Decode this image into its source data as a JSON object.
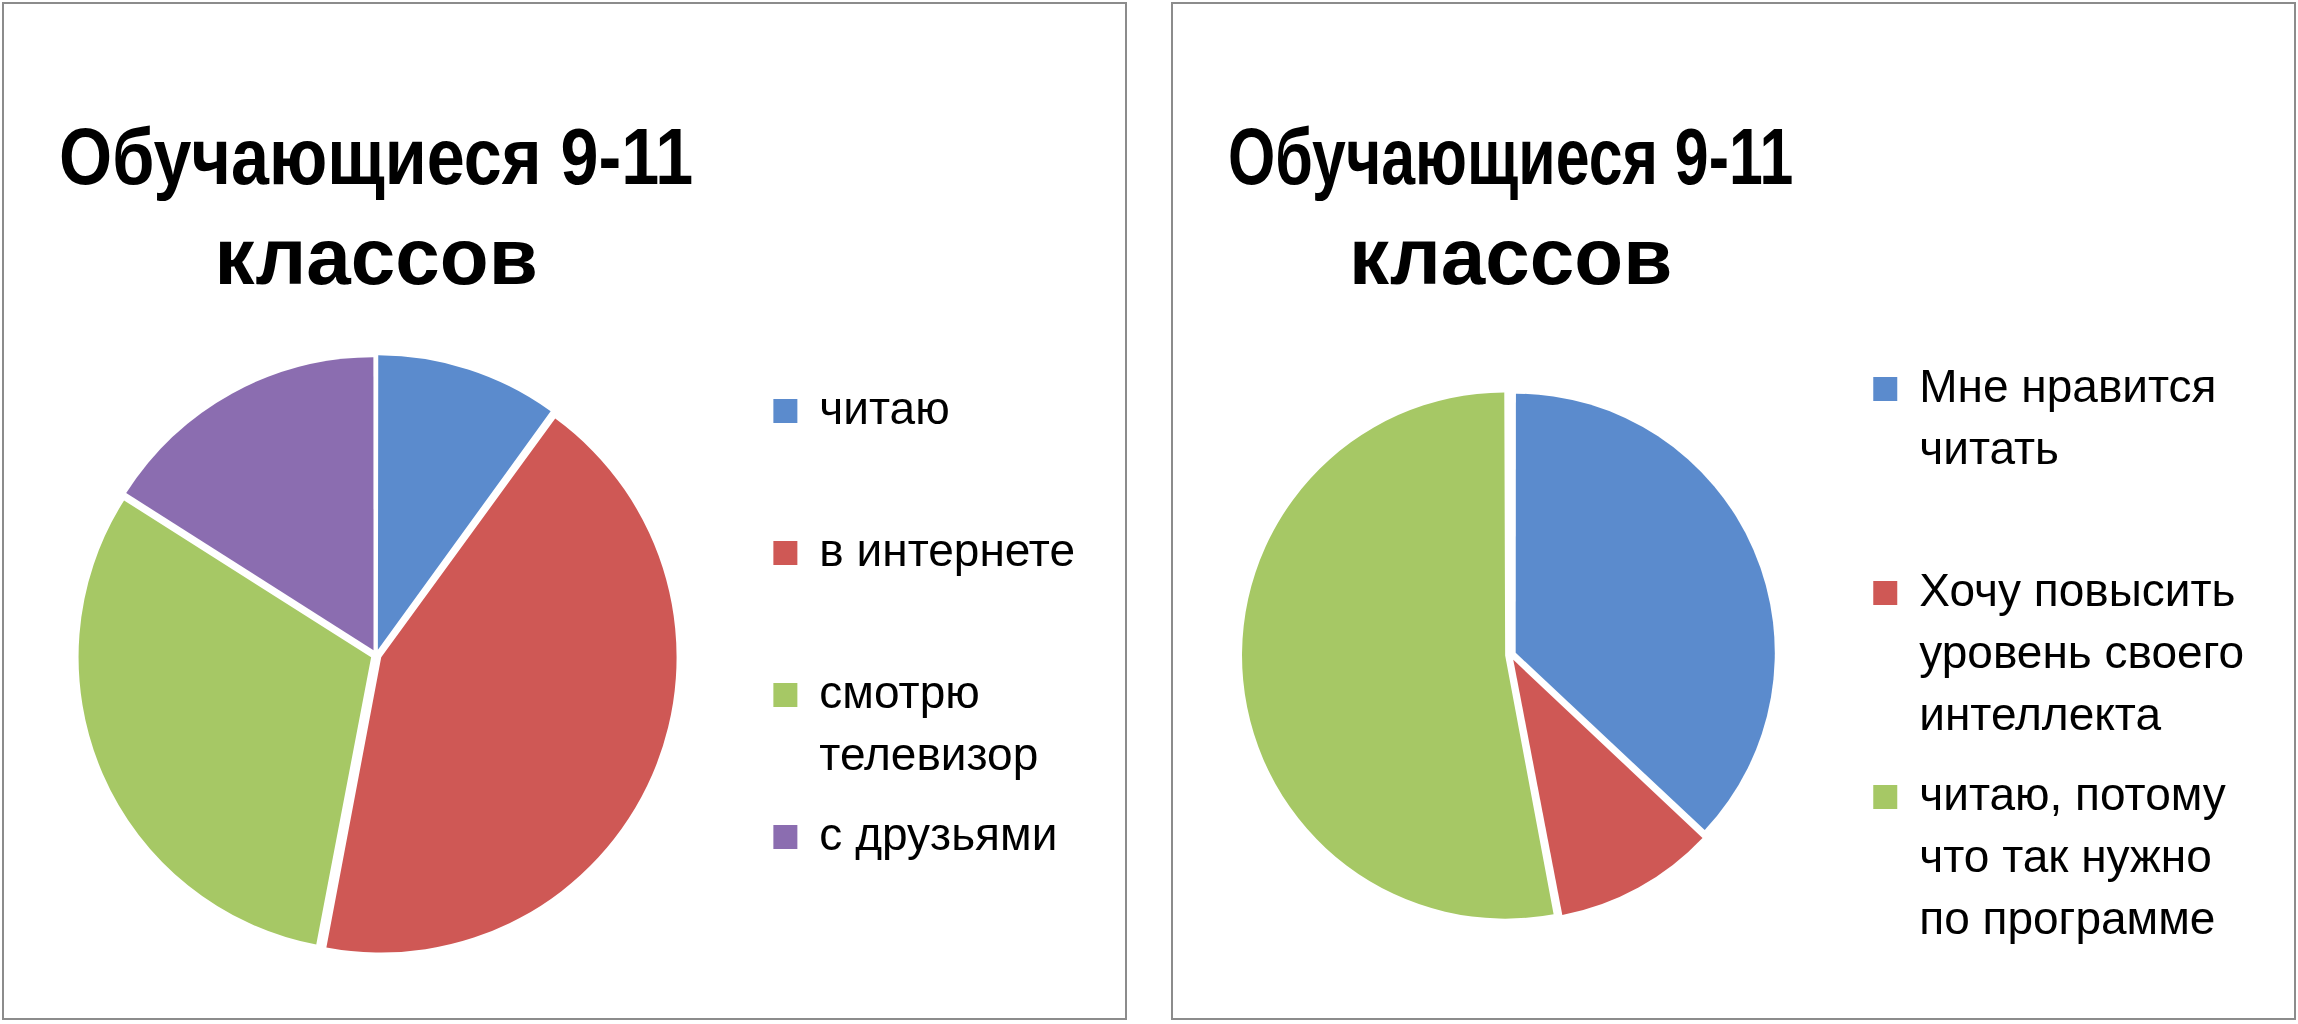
{
  "chart_data": [
    {
      "type": "pie",
      "title": "Обучающиеся 9-11 классов",
      "categories": [
        "читаю",
        "в интернете",
        "смотрю телевизор",
        "с друзьями"
      ],
      "values": [
        10,
        43,
        31,
        16
      ],
      "colors": [
        "#5b8bcd",
        "#cf5855",
        "#a6c865",
        "#8b6db0"
      ],
      "legend": "right"
    },
    {
      "type": "pie",
      "title": "Обучающиеся 9-11 классов",
      "categories": [
        "Мне нравится читать",
        "Хочу повысить уровень своего интеллекта",
        "читаю, потому что так нужно по программе"
      ],
      "values": [
        37,
        10,
        53
      ],
      "colors": [
        "#5b8bcd",
        "#cf5855",
        "#a6c865"
      ],
      "legend": "right"
    }
  ]
}
